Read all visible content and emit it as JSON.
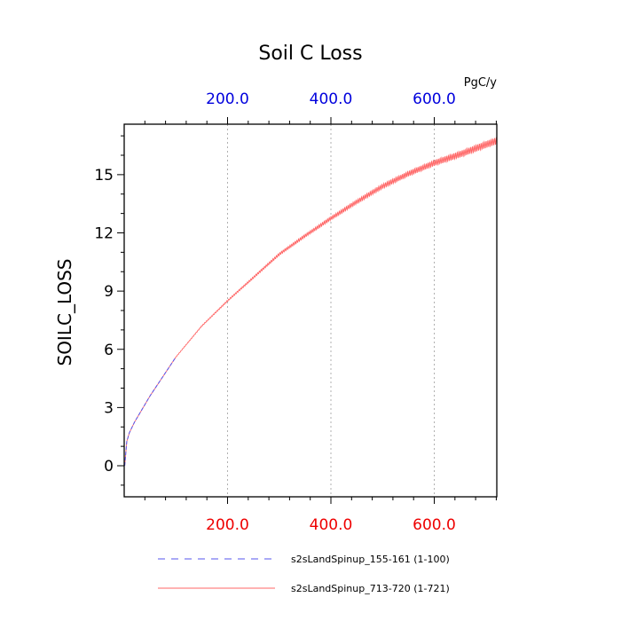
{
  "chart_data": {
    "type": "line",
    "title": "Soil C Loss",
    "ylabel": "SOILC_LOSS",
    "units": "PgC/y",
    "xlim": [
      0,
      721
    ],
    "ylim": [
      -1.6,
      17.6
    ],
    "x_ticks_bottom": [
      "200.0",
      "400.0",
      "600.0"
    ],
    "x_ticks_top": [
      "200.0",
      "400.0",
      "600.0"
    ],
    "y_ticks": [
      "0",
      "3",
      "6",
      "9",
      "12",
      "15"
    ],
    "grid": "x-dotted",
    "colors": {
      "series_1": "#5555ee",
      "series_2": "#ff6666",
      "x_ticks_bottom": "#ee0000",
      "x_ticks_top": "#0000dd"
    },
    "series": [
      {
        "name": "s2sLandSpinup_155-161 (1-100)",
        "style": "dashed",
        "x": [
          1,
          5,
          10,
          20,
          30,
          40,
          50,
          60,
          70,
          80,
          90,
          100
        ],
        "y": [
          0.0,
          1.25,
          1.7,
          2.25,
          2.7,
          3.15,
          3.6,
          4.0,
          4.4,
          4.8,
          5.2,
          5.6
        ]
      },
      {
        "name": "s2sLandSpinup_713-720 (1-721)",
        "style": "solid",
        "x": [
          1,
          5,
          10,
          20,
          30,
          50,
          75,
          100,
          150,
          200,
          250,
          300,
          350,
          400,
          450,
          500,
          550,
          600,
          650,
          700,
          721
        ],
        "y": [
          0.0,
          1.25,
          1.7,
          2.25,
          2.7,
          3.6,
          4.6,
          5.6,
          7.2,
          8.5,
          9.7,
          10.9,
          11.85,
          12.75,
          13.6,
          14.4,
          15.05,
          15.6,
          16.05,
          16.55,
          16.75
        ]
      }
    ]
  }
}
